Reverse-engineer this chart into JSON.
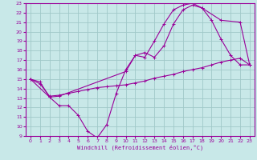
{
  "xlabel": "Windchill (Refroidissement éolien,°C)",
  "bg_color": "#c8e8e8",
  "grid_color": "#a0c8c8",
  "line_color": "#990099",
  "xlim": [
    -0.5,
    23.5
  ],
  "ylim": [
    9,
    23
  ],
  "xticks": [
    0,
    1,
    2,
    3,
    4,
    5,
    6,
    7,
    8,
    9,
    10,
    11,
    12,
    13,
    14,
    15,
    16,
    17,
    18,
    19,
    20,
    21,
    22,
    23
  ],
  "yticks": [
    9,
    10,
    11,
    12,
    13,
    14,
    15,
    16,
    17,
    18,
    19,
    20,
    21,
    22,
    23
  ],
  "curve1_x": [
    0,
    1,
    2,
    3,
    4,
    5,
    6,
    7,
    8,
    9,
    10,
    11,
    12,
    13,
    14,
    15,
    16,
    17,
    18,
    19,
    20,
    21,
    22,
    23
  ],
  "curve1_y": [
    15.0,
    14.7,
    13.1,
    12.2,
    12.2,
    11.2,
    9.5,
    8.8,
    10.2,
    13.5,
    16.0,
    17.5,
    17.3,
    19.0,
    20.8,
    22.3,
    22.8,
    23.0,
    22.5,
    21.2,
    19.2,
    17.5,
    16.5,
    16.5
  ],
  "curve2_x": [
    0,
    2,
    3,
    10,
    11,
    12,
    13,
    14,
    15,
    16,
    17,
    18,
    20,
    22,
    23
  ],
  "curve2_y": [
    15.0,
    13.1,
    13.2,
    15.8,
    17.5,
    17.8,
    17.3,
    18.5,
    20.8,
    22.3,
    22.8,
    22.5,
    21.2,
    21.0,
    16.5
  ],
  "curve3_x": [
    0,
    1,
    2,
    3,
    4,
    5,
    6,
    7,
    8,
    9,
    10,
    11,
    12,
    13,
    14,
    15,
    16,
    17,
    18,
    19,
    20,
    21,
    22,
    23
  ],
  "curve3_y": [
    15.0,
    14.5,
    13.2,
    13.3,
    13.5,
    13.7,
    13.9,
    14.1,
    14.2,
    14.3,
    14.4,
    14.6,
    14.8,
    15.1,
    15.3,
    15.5,
    15.8,
    16.0,
    16.2,
    16.5,
    16.8,
    17.0,
    17.2,
    16.5
  ]
}
